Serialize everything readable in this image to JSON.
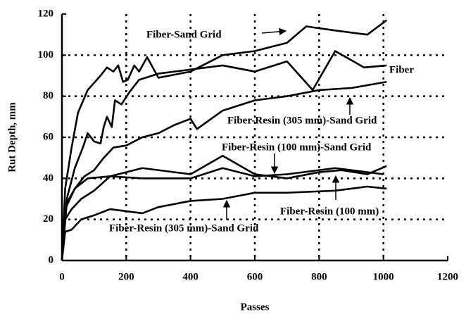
{
  "chart_data": {
    "type": "line",
    "xlabel": "Passes",
    "ylabel": "Rut Depth, mm",
    "xlim": [
      0,
      1200
    ],
    "xticks": [
      0,
      200,
      400,
      600,
      800,
      1000,
      1200
    ],
    "ylim": [
      0,
      120
    ],
    "yticks": [
      0,
      20,
      40,
      60,
      80,
      100,
      120
    ],
    "grid": true,
    "series": [
      {
        "name": "Fiber-Sand Grid",
        "color": "#000000",
        "x": [
          0,
          10,
          30,
          50,
          80,
          120,
          140,
          160,
          175,
          190,
          205,
          225,
          240,
          265,
          300,
          400,
          500,
          600,
          700,
          760,
          850,
          950,
          1010
        ],
        "values": [
          0,
          35,
          55,
          72,
          83,
          90,
          94,
          92,
          95,
          87,
          88,
          95,
          92,
          99,
          89,
          92,
          100,
          102,
          106,
          114,
          112,
          110,
          117
        ]
      },
      {
        "name": "Fiber",
        "color": "#000000",
        "x": [
          0,
          15,
          40,
          65,
          80,
          100,
          120,
          130,
          140,
          155,
          165,
          185,
          210,
          240,
          300,
          400,
          500,
          600,
          700,
          780,
          850,
          940,
          1010
        ],
        "values": [
          0,
          30,
          45,
          55,
          62,
          58,
          57,
          65,
          70,
          65,
          78,
          76,
          82,
          88,
          91,
          93,
          95,
          92,
          97,
          83,
          102,
          94,
          95
        ]
      },
      {
        "name": "Fiber-Resin (305 mm)-Sand Grid",
        "color": "#000000",
        "x": [
          0,
          15,
          40,
          70,
          100,
          130,
          160,
          200,
          250,
          300,
          350,
          400,
          420,
          500,
          600,
          700,
          800,
          900,
          1010
        ],
        "values": [
          0,
          28,
          35,
          41,
          44,
          50,
          55,
          56,
          60,
          62,
          66,
          69,
          64,
          73,
          78,
          80,
          83,
          84,
          87
        ]
      },
      {
        "name": "Fiber-Resin (100 mm)-Sand Grid",
        "color": "#000000",
        "x": [
          0,
          10,
          40,
          80,
          150,
          250,
          400,
          500,
          600,
          700,
          800,
          870,
          950,
          1010
        ],
        "values": [
          0,
          25,
          35,
          40,
          41,
          45,
          42,
          51,
          42,
          40,
          43,
          44,
          42,
          46
        ]
      },
      {
        "name": "Fiber-Resin (100 mm)",
        "color": "#000000",
        "x": [
          0,
          10,
          30,
          60,
          100,
          150,
          250,
          400,
          500,
          600,
          700,
          850,
          1000
        ],
        "values": [
          0,
          20,
          25,
          30,
          34,
          41,
          40,
          40,
          45,
          41,
          42,
          45,
          42
        ]
      },
      {
        "name": "Fiber-Resin (305 mm)-Sand Grid",
        "color": "#000000",
        "x": [
          0,
          10,
          30,
          60,
          100,
          150,
          250,
          300,
          400,
          500,
          600,
          700,
          850,
          950,
          1010
        ],
        "values": [
          0,
          14,
          15,
          20,
          22,
          25,
          23,
          26,
          29,
          30,
          33,
          33,
          34,
          36,
          35
        ]
      }
    ]
  }
}
